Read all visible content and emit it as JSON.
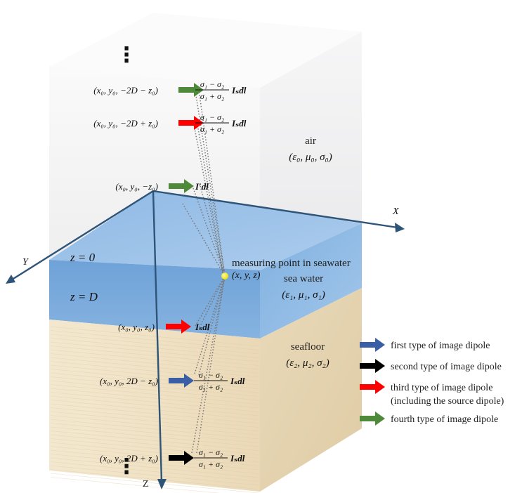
{
  "colors": {
    "blue_arrow": "#3a5fa5",
    "black_arrow": "#000000",
    "red_arrow": "#ff0000",
    "green_arrow": "#4f8a3a",
    "axis": "#2e5478",
    "air": "#f1f1f2",
    "sea_top": "#8fb8e2",
    "sea_front": "#78a9dc",
    "sea_side": "#9dc3e8",
    "floor_front": "#efe1c4",
    "floor_side": "#e6d6b5",
    "point": "#ffee33"
  },
  "axes": {
    "x": "X",
    "y": "Y",
    "z": "Z"
  },
  "layers": {
    "air": {
      "name": "air",
      "params": "(ε₀, μ₀, σ₀)"
    },
    "sea": {
      "name": "sea water",
      "params": "(ε₁, μ₁, σ₁)"
    },
    "floor": {
      "name": "seafloor",
      "params": "(ε₂, μ₂, σ₂)"
    }
  },
  "planes": {
    "surface": "z = 0",
    "bottom": "z = D"
  },
  "measuring": {
    "label": "measuring point in seawater",
    "coords": "(x, y, z)"
  },
  "ellipsis": "⋮",
  "dipoles": [
    {
      "coords": "(x₀, y₀, −2D − z₀)",
      "type": "green",
      "num": "σ₁ − σ₂",
      "den": "σ₁ + σ₂",
      "moment": "Iₛdl"
    },
    {
      "coords": "(x₀, y₀, −2D + z₀)",
      "type": "red",
      "num": "σ₁ − σ₂",
      "den": "σ₁ + σ₂",
      "moment": "Iₛdl"
    },
    {
      "coords": "(x₀, y₀, −z₀)",
      "type": "green",
      "num": "",
      "den": "",
      "moment": "I′dl"
    },
    {
      "coords": "(x₀, y₀, z₀)",
      "type": "red",
      "num": "",
      "den": "",
      "moment": "Iₛdl"
    },
    {
      "coords": "(x₀, y₀, 2D − z₀)",
      "type": "blue",
      "num": "σ₁ − σ₂",
      "den": "σ₁ + σ₂",
      "moment": "Iₛdl"
    },
    {
      "coords": "(x₀, y₀, 2D + z₀)",
      "type": "black",
      "num": "σ₁ − σ₂",
      "den": "σ₁ + σ₂",
      "moment": "Iₛdl"
    }
  ],
  "legend": [
    {
      "type": "blue",
      "text": "first type of image dipole"
    },
    {
      "type": "black",
      "text": "second type of image dipole"
    },
    {
      "type": "red",
      "text": "third type of image dipole",
      "text2": "(including the source dipole)"
    },
    {
      "type": "green",
      "text": "fourth type of image dipole"
    }
  ]
}
